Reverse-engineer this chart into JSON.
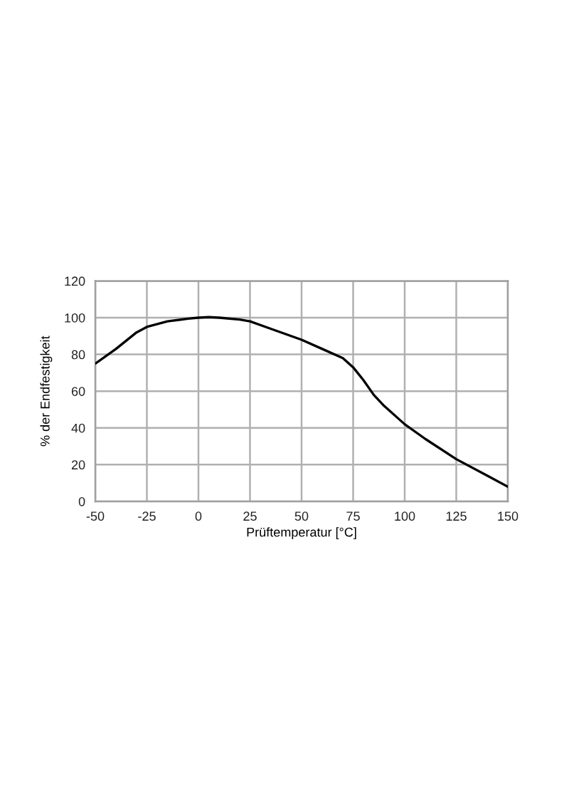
{
  "chart_data": {
    "type": "line",
    "xlabel": "Prüftemperatur [°C]",
    "ylabel": "% der Endfestigkeit",
    "x": [
      -50,
      -40,
      -30,
      -25,
      -15,
      -5,
      0,
      5,
      10,
      20,
      25,
      35,
      50,
      60,
      70,
      75,
      80,
      85,
      90,
      100,
      110,
      125,
      140,
      150
    ],
    "series": [
      {
        "color": "#000000",
        "values": [
          75,
          83,
          92,
          95,
          98,
          99.5,
          100,
          100.3,
          100,
          99,
          98,
          94,
          88,
          83,
          78,
          73,
          66,
          58,
          52,
          42,
          34,
          23,
          14,
          8
        ]
      }
    ],
    "xlim": [
      -50,
      150
    ],
    "xticks": [
      -50,
      -25,
      0,
      25,
      50,
      75,
      100,
      125,
      150
    ],
    "ylim": [
      0,
      120
    ],
    "yticks": [
      0,
      20,
      40,
      60,
      80,
      100,
      120
    ],
    "grid": true,
    "marker": "none",
    "line_style": "solid"
  }
}
